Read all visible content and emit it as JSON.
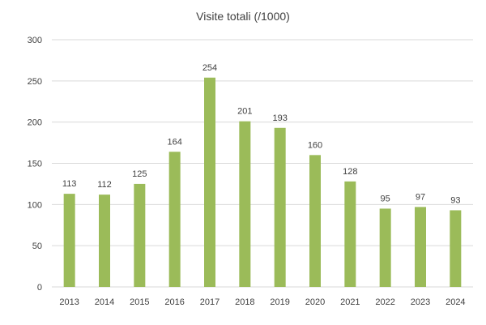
{
  "chart_data": {
    "type": "bar",
    "title": "Visite totali (/1000)",
    "xlabel": "",
    "ylabel": "",
    "categories": [
      "2013",
      "2014",
      "2015",
      "2016",
      "2017",
      "2018",
      "2019",
      "2020",
      "2021",
      "2022",
      "2023",
      "2024"
    ],
    "values": [
      113,
      112,
      125,
      164,
      254,
      201,
      193,
      160,
      128,
      95,
      97,
      93
    ],
    "ylim": [
      0,
      300
    ],
    "yticks": [
      0,
      50,
      100,
      150,
      200,
      250,
      300
    ],
    "grid": true,
    "legend": "none",
    "bar_color": "#9bbb59"
  }
}
